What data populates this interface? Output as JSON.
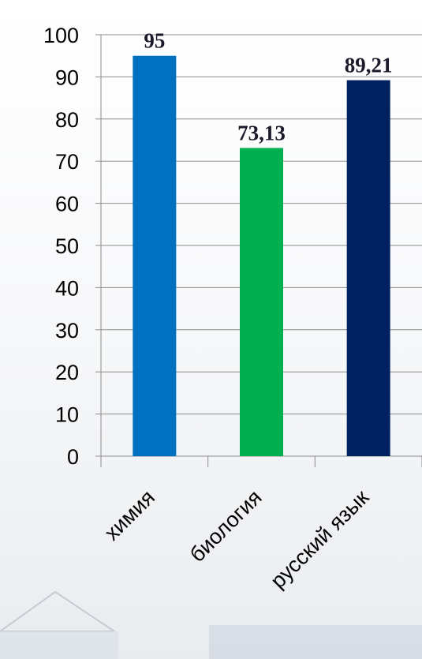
{
  "chart_data": {
    "type": "bar",
    "categories": [
      "химия",
      "биология",
      "русский язык"
    ],
    "values": [
      95,
      73.13,
      89.21
    ],
    "data_labels": [
      "95",
      "73,13",
      "89,21"
    ],
    "colors": [
      "#0070c0",
      "#00b050",
      "#002060"
    ],
    "ylim": [
      0,
      100
    ],
    "yticks": [
      "0",
      "10",
      "20",
      "30",
      "40",
      "50",
      "60",
      "70",
      "80",
      "90",
      "100"
    ],
    "grid": true,
    "title": "",
    "xlabel": "",
    "ylabel": ""
  }
}
